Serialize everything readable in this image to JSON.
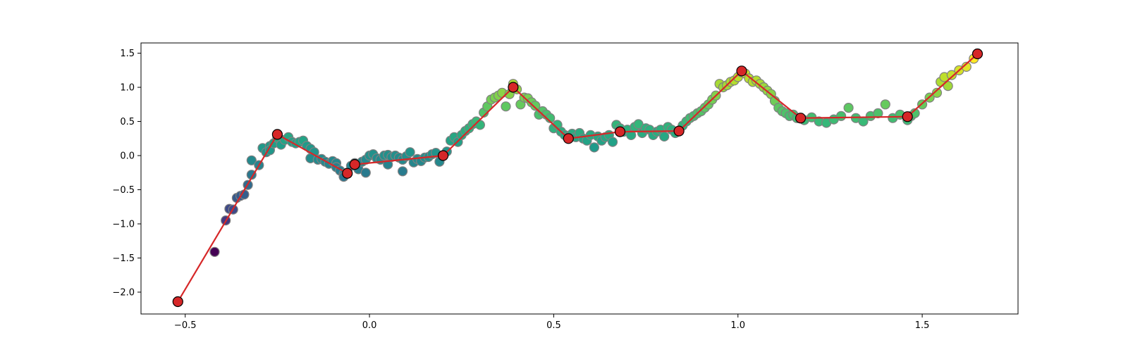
{
  "chart_data": {
    "type": "scatter",
    "title": "",
    "xlabel": "",
    "ylabel": "",
    "xlim": [
      -0.62,
      1.76
    ],
    "ylim": [
      -2.32,
      1.65
    ],
    "x_ticks": [
      -0.5,
      0.0,
      0.5,
      1.0,
      1.5
    ],
    "x_tick_labels": [
      "−0.5",
      "0.0",
      "0.5",
      "1.0",
      "1.5"
    ],
    "y_ticks": [
      -2.0,
      -1.5,
      -1.0,
      -0.5,
      0.0,
      0.5,
      1.0,
      1.5
    ],
    "y_tick_labels": [
      "−2.0",
      "−1.5",
      "−1.0",
      "−0.5",
      "0.0",
      "0.5",
      "1.0",
      "1.5"
    ],
    "grid": false,
    "legend": "none",
    "series": [
      {
        "kind": "scatter",
        "colormap": "viridis",
        "color_by": "y",
        "edge_color": "#808080",
        "points": [
          [
            -0.42,
            -1.41
          ],
          [
            -0.39,
            -0.95
          ],
          [
            -0.38,
            -0.78
          ],
          [
            -0.37,
            -0.79
          ],
          [
            -0.36,
            -0.62
          ],
          [
            -0.35,
            -0.59
          ],
          [
            -0.34,
            -0.57
          ],
          [
            -0.33,
            -0.43
          ],
          [
            -0.32,
            -0.28
          ],
          [
            -0.32,
            -0.07
          ],
          [
            -0.3,
            -0.14
          ],
          [
            -0.29,
            0.11
          ],
          [
            -0.28,
            0.05
          ],
          [
            -0.27,
            0.14
          ],
          [
            -0.27,
            0.08
          ],
          [
            -0.26,
            0.18
          ],
          [
            -0.25,
            0.26
          ],
          [
            -0.24,
            0.16
          ],
          [
            -0.23,
            0.23
          ],
          [
            -0.22,
            0.27
          ],
          [
            -0.21,
            0.2
          ],
          [
            -0.2,
            0.18
          ],
          [
            -0.19,
            0.2
          ],
          [
            -0.18,
            0.22
          ],
          [
            -0.17,
            0.14
          ],
          [
            -0.16,
            0.1
          ],
          [
            -0.15,
            0.05
          ],
          [
            -0.16,
            -0.04
          ],
          [
            -0.14,
            -0.06
          ],
          [
            -0.13,
            -0.05
          ],
          [
            -0.12,
            -0.09
          ],
          [
            -0.11,
            -0.12
          ],
          [
            -0.1,
            -0.08
          ],
          [
            -0.09,
            -0.11
          ],
          [
            -0.09,
            -0.17
          ],
          [
            -0.08,
            -0.22
          ],
          [
            -0.07,
            -0.27
          ],
          [
            -0.07,
            -0.31
          ],
          [
            -0.06,
            -0.25
          ],
          [
            -0.05,
            -0.15
          ],
          [
            -0.04,
            -0.11
          ],
          [
            -0.03,
            -0.14
          ],
          [
            -0.03,
            -0.2
          ],
          [
            -0.02,
            -0.09
          ],
          [
            -0.01,
            -0.06
          ],
          [
            -0.01,
            -0.25
          ],
          [
            0.0,
            0.0
          ],
          [
            0.01,
            0.02
          ],
          [
            0.02,
            -0.04
          ],
          [
            0.03,
            -0.06
          ],
          [
            0.04,
            0.0
          ],
          [
            0.05,
            0.01
          ],
          [
            0.05,
            -0.13
          ],
          [
            0.06,
            -0.02
          ],
          [
            0.07,
            0.0
          ],
          [
            0.08,
            -0.03
          ],
          [
            0.09,
            -0.06
          ],
          [
            0.09,
            -0.23
          ],
          [
            0.1,
            -0.01
          ],
          [
            0.11,
            0.05
          ],
          [
            0.12,
            -0.1
          ],
          [
            0.13,
            -0.05
          ],
          [
            0.14,
            -0.08
          ],
          [
            0.15,
            -0.03
          ],
          [
            0.16,
            -0.02
          ],
          [
            0.17,
            0.02
          ],
          [
            0.18,
            0.04
          ],
          [
            0.19,
            -0.09
          ],
          [
            0.2,
            0.0
          ],
          [
            0.21,
            0.06
          ],
          [
            0.22,
            0.22
          ],
          [
            0.23,
            0.27
          ],
          [
            0.24,
            0.2
          ],
          [
            0.25,
            0.3
          ],
          [
            0.26,
            0.36
          ],
          [
            0.27,
            0.4
          ],
          [
            0.28,
            0.46
          ],
          [
            0.29,
            0.5
          ],
          [
            0.3,
            0.45
          ],
          [
            0.31,
            0.63
          ],
          [
            0.32,
            0.72
          ],
          [
            0.33,
            0.82
          ],
          [
            0.34,
            0.85
          ],
          [
            0.35,
            0.88
          ],
          [
            0.36,
            0.92
          ],
          [
            0.37,
            0.72
          ],
          [
            0.38,
            0.9
          ],
          [
            0.39,
            1.05
          ],
          [
            0.4,
            0.97
          ],
          [
            0.41,
            0.75
          ],
          [
            0.42,
            0.85
          ],
          [
            0.43,
            0.84
          ],
          [
            0.44,
            0.78
          ],
          [
            0.45,
            0.73
          ],
          [
            0.46,
            0.6
          ],
          [
            0.47,
            0.65
          ],
          [
            0.48,
            0.6
          ],
          [
            0.49,
            0.55
          ],
          [
            0.5,
            0.4
          ],
          [
            0.51,
            0.45
          ],
          [
            0.52,
            0.35
          ],
          [
            0.53,
            0.3
          ],
          [
            0.54,
            0.28
          ],
          [
            0.55,
            0.32
          ],
          [
            0.56,
            0.27
          ],
          [
            0.57,
            0.33
          ],
          [
            0.58,
            0.25
          ],
          [
            0.59,
            0.22
          ],
          [
            0.6,
            0.3
          ],
          [
            0.61,
            0.12
          ],
          [
            0.62,
            0.28
          ],
          [
            0.63,
            0.22
          ],
          [
            0.64,
            0.27
          ],
          [
            0.65,
            0.3
          ],
          [
            0.66,
            0.2
          ],
          [
            0.67,
            0.45
          ],
          [
            0.68,
            0.4
          ],
          [
            0.69,
            0.35
          ],
          [
            0.7,
            0.38
          ],
          [
            0.71,
            0.3
          ],
          [
            0.72,
            0.42
          ],
          [
            0.73,
            0.46
          ],
          [
            0.74,
            0.33
          ],
          [
            0.75,
            0.4
          ],
          [
            0.76,
            0.38
          ],
          [
            0.77,
            0.3
          ],
          [
            0.78,
            0.35
          ],
          [
            0.79,
            0.38
          ],
          [
            0.8,
            0.28
          ],
          [
            0.81,
            0.42
          ],
          [
            0.82,
            0.38
          ],
          [
            0.83,
            0.33
          ],
          [
            0.84,
            0.36
          ],
          [
            0.85,
            0.44
          ],
          [
            0.86,
            0.5
          ],
          [
            0.87,
            0.55
          ],
          [
            0.88,
            0.58
          ],
          [
            0.89,
            0.62
          ],
          [
            0.9,
            0.65
          ],
          [
            0.91,
            0.7
          ],
          [
            0.92,
            0.75
          ],
          [
            0.93,
            0.82
          ],
          [
            0.94,
            0.88
          ],
          [
            0.95,
            1.05
          ],
          [
            0.96,
            1.0
          ],
          [
            0.97,
            1.03
          ],
          [
            0.98,
            1.08
          ],
          [
            0.99,
            1.1
          ],
          [
            1.0,
            1.15
          ],
          [
            1.01,
            1.22
          ],
          [
            1.02,
            1.2
          ],
          [
            1.03,
            1.13
          ],
          [
            1.04,
            1.08
          ],
          [
            1.05,
            1.1
          ],
          [
            1.06,
            1.05
          ],
          [
            1.07,
            1.0
          ],
          [
            1.08,
            0.95
          ],
          [
            1.09,
            0.9
          ],
          [
            1.1,
            0.8
          ],
          [
            1.11,
            0.7
          ],
          [
            1.12,
            0.65
          ],
          [
            1.13,
            0.62
          ],
          [
            1.14,
            0.58
          ],
          [
            1.15,
            0.6
          ],
          [
            1.16,
            0.55
          ],
          [
            1.18,
            0.52
          ],
          [
            1.2,
            0.56
          ],
          [
            1.22,
            0.5
          ],
          [
            1.24,
            0.48
          ],
          [
            1.26,
            0.53
          ],
          [
            1.28,
            0.58
          ],
          [
            1.3,
            0.7
          ],
          [
            1.32,
            0.55
          ],
          [
            1.34,
            0.5
          ],
          [
            1.36,
            0.58
          ],
          [
            1.38,
            0.62
          ],
          [
            1.4,
            0.75
          ],
          [
            1.42,
            0.55
          ],
          [
            1.44,
            0.6
          ],
          [
            1.46,
            0.52
          ],
          [
            1.47,
            0.58
          ],
          [
            1.48,
            0.62
          ],
          [
            1.5,
            0.75
          ],
          [
            1.52,
            0.85
          ],
          [
            1.54,
            0.92
          ],
          [
            1.55,
            1.08
          ],
          [
            1.56,
            1.15
          ],
          [
            1.57,
            1.02
          ],
          [
            1.58,
            1.18
          ],
          [
            1.6,
            1.25
          ],
          [
            1.62,
            1.3
          ],
          [
            1.64,
            1.42
          ]
        ]
      },
      {
        "kind": "line",
        "color": "#d62728",
        "marker": "circle",
        "marker_face": "#d62728",
        "marker_edge": "#000000",
        "points": [
          [
            -0.52,
            -2.14
          ],
          [
            -0.25,
            0.31
          ],
          [
            -0.06,
            -0.26
          ],
          [
            -0.04,
            -0.13
          ],
          [
            0.2,
            0.0
          ],
          [
            0.39,
            1.0
          ],
          [
            0.54,
            0.25
          ],
          [
            0.68,
            0.35
          ],
          [
            0.84,
            0.36
          ],
          [
            1.01,
            1.24
          ],
          [
            1.17,
            0.55
          ],
          [
            1.46,
            0.57
          ],
          [
            1.65,
            1.49
          ]
        ]
      }
    ]
  }
}
